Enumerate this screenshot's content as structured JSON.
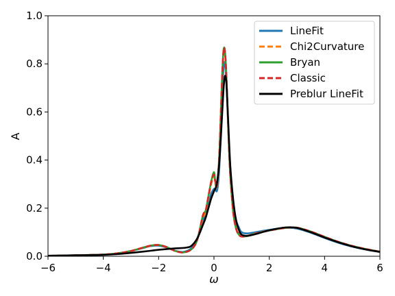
{
  "chart_data": {
    "type": "line",
    "xlabel": "ω",
    "ylabel": "A",
    "xlim": [
      -6,
      6
    ],
    "ylim": [
      0,
      1.0
    ],
    "xticks": [
      -6,
      -4,
      -2,
      0,
      2,
      4,
      6
    ],
    "xtick_labels": [
      "−6",
      "−4",
      "−2",
      "0",
      "2",
      "4",
      "6"
    ],
    "yticks": [
      0.0,
      0.2,
      0.4,
      0.6,
      0.8,
      1.0
    ],
    "ytick_labels": [
      "0.0",
      "0.2",
      "0.4",
      "0.6",
      "0.8",
      "1.0"
    ],
    "grid": false,
    "legend_position": "top-right",
    "series": [
      {
        "name": "LineFit",
        "color": "#1f77b4",
        "dash": "solid",
        "x": [
          -6,
          -5,
          -4,
          -3.5,
          -3,
          -2.6,
          -2.3,
          -2.0,
          -1.7,
          -1.4,
          -1.1,
          -0.8,
          -0.6,
          -0.4,
          -0.3,
          -0.2,
          -0.1,
          0.0,
          0.05,
          0.1,
          0.15,
          0.2,
          0.25,
          0.3,
          0.35,
          0.4,
          0.45,
          0.5,
          0.55,
          0.6,
          0.7,
          0.8,
          0.9,
          1.0,
          1.2,
          1.5,
          2.0,
          2.6,
          3.0,
          3.5,
          4.0,
          4.5,
          5.0,
          5.5,
          6.0
        ],
        "y": [
          0.002,
          0.004,
          0.007,
          0.012,
          0.022,
          0.033,
          0.042,
          0.044,
          0.036,
          0.023,
          0.018,
          0.035,
          0.075,
          0.15,
          0.17,
          0.22,
          0.26,
          0.28,
          0.28,
          0.27,
          0.3,
          0.38,
          0.52,
          0.68,
          0.79,
          0.8,
          0.72,
          0.58,
          0.45,
          0.35,
          0.22,
          0.15,
          0.12,
          0.1,
          0.095,
          0.1,
          0.11,
          0.118,
          0.115,
          0.098,
          0.076,
          0.056,
          0.04,
          0.028,
          0.018
        ]
      },
      {
        "name": "Chi2Curvature",
        "color": "#ff7f0e",
        "dash": "dashed",
        "x": [
          -6,
          -5,
          -4,
          -3.5,
          -3,
          -2.6,
          -2.3,
          -2.0,
          -1.7,
          -1.4,
          -1.1,
          -0.8,
          -0.6,
          -0.4,
          -0.3,
          -0.2,
          -0.1,
          0.0,
          0.05,
          0.1,
          0.15,
          0.2,
          0.25,
          0.3,
          0.35,
          0.4,
          0.45,
          0.5,
          0.55,
          0.6,
          0.7,
          0.8,
          0.9,
          1.0,
          1.2,
          1.5,
          2.0,
          2.6,
          3.0,
          3.5,
          4.0,
          4.5,
          5.0,
          5.5,
          6.0
        ],
        "y": [
          0.002,
          0.004,
          0.007,
          0.012,
          0.022,
          0.034,
          0.043,
          0.046,
          0.037,
          0.022,
          0.016,
          0.03,
          0.07,
          0.16,
          0.18,
          0.24,
          0.3,
          0.33,
          0.3,
          0.28,
          0.33,
          0.42,
          0.58,
          0.74,
          0.85,
          0.84,
          0.74,
          0.58,
          0.43,
          0.32,
          0.18,
          0.12,
          0.095,
          0.085,
          0.085,
          0.095,
          0.108,
          0.118,
          0.118,
          0.102,
          0.08,
          0.059,
          0.042,
          0.029,
          0.019
        ]
      },
      {
        "name": "Bryan",
        "color": "#2ca02c",
        "dash": "solid",
        "x": [
          -6,
          -5,
          -4,
          -3.5,
          -3,
          -2.6,
          -2.3,
          -2.0,
          -1.7,
          -1.4,
          -1.1,
          -0.8,
          -0.6,
          -0.4,
          -0.3,
          -0.2,
          -0.1,
          0.0,
          0.05,
          0.1,
          0.15,
          0.2,
          0.25,
          0.3,
          0.35,
          0.4,
          0.45,
          0.5,
          0.55,
          0.6,
          0.7,
          0.8,
          0.9,
          1.0,
          1.2,
          1.5,
          2.0,
          2.6,
          3.0,
          3.5,
          4.0,
          4.5,
          5.0,
          5.5,
          6.0
        ],
        "y": [
          0.002,
          0.004,
          0.007,
          0.012,
          0.022,
          0.035,
          0.044,
          0.047,
          0.038,
          0.022,
          0.016,
          0.03,
          0.07,
          0.17,
          0.19,
          0.25,
          0.31,
          0.35,
          0.31,
          0.29,
          0.34,
          0.44,
          0.6,
          0.76,
          0.86,
          0.85,
          0.75,
          0.59,
          0.43,
          0.32,
          0.18,
          0.115,
          0.09,
          0.082,
          0.084,
          0.094,
          0.107,
          0.118,
          0.119,
          0.103,
          0.081,
          0.06,
          0.043,
          0.03,
          0.019
        ]
      },
      {
        "name": "Classic",
        "color": "#d62728",
        "dash": "dashed",
        "x": [
          -6,
          -5,
          -4,
          -3.5,
          -3,
          -2.6,
          -2.3,
          -2.0,
          -1.7,
          -1.4,
          -1.1,
          -0.8,
          -0.6,
          -0.4,
          -0.3,
          -0.2,
          -0.1,
          0.0,
          0.05,
          0.1,
          0.15,
          0.2,
          0.25,
          0.3,
          0.35,
          0.4,
          0.45,
          0.5,
          0.55,
          0.6,
          0.7,
          0.8,
          0.9,
          1.0,
          1.2,
          1.5,
          2.0,
          2.6,
          3.0,
          3.5,
          4.0,
          4.5,
          5.0,
          5.5,
          6.0
        ],
        "y": [
          0.002,
          0.004,
          0.007,
          0.012,
          0.022,
          0.035,
          0.044,
          0.047,
          0.038,
          0.022,
          0.016,
          0.03,
          0.07,
          0.17,
          0.19,
          0.25,
          0.31,
          0.34,
          0.31,
          0.29,
          0.34,
          0.44,
          0.6,
          0.76,
          0.86,
          0.85,
          0.75,
          0.59,
          0.43,
          0.32,
          0.18,
          0.115,
          0.09,
          0.082,
          0.084,
          0.094,
          0.107,
          0.118,
          0.119,
          0.103,
          0.081,
          0.06,
          0.043,
          0.03,
          0.019
        ]
      },
      {
        "name": "Preblur LineFit",
        "color": "#000000",
        "dash": "solid",
        "x": [
          -6,
          -5,
          -4,
          -3.5,
          -3,
          -2.5,
          -2.0,
          -1.5,
          -1.0,
          -0.8,
          -0.6,
          -0.4,
          -0.3,
          -0.2,
          -0.1,
          0.0,
          0.1,
          0.2,
          0.3,
          0.35,
          0.4,
          0.45,
          0.5,
          0.55,
          0.6,
          0.7,
          0.8,
          0.9,
          1.0,
          1.2,
          1.5,
          2.0,
          2.6,
          3.0,
          3.5,
          4.0,
          4.5,
          5.0,
          5.5,
          6.0
        ],
        "y": [
          0.002,
          0.004,
          0.006,
          0.009,
          0.014,
          0.02,
          0.027,
          0.032,
          0.036,
          0.045,
          0.075,
          0.13,
          0.16,
          0.2,
          0.24,
          0.27,
          0.3,
          0.4,
          0.6,
          0.7,
          0.75,
          0.72,
          0.6,
          0.47,
          0.36,
          0.23,
          0.15,
          0.11,
          0.09,
          0.085,
          0.092,
          0.108,
          0.12,
          0.118,
          0.1,
          0.078,
          0.058,
          0.041,
          0.028,
          0.018
        ]
      }
    ]
  }
}
